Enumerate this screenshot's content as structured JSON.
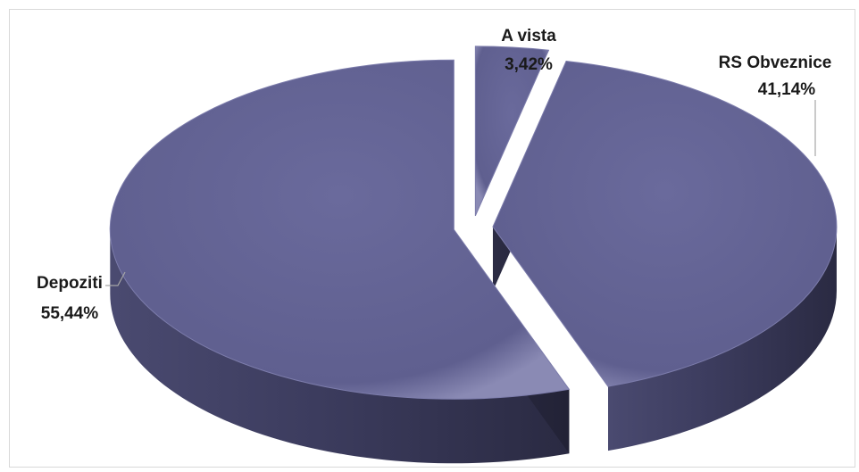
{
  "chart_data": {
    "type": "pie",
    "variant": "3d-exploded",
    "title": "",
    "slices": [
      {
        "name": "A vista",
        "value": 3.42,
        "label": "3,42%"
      },
      {
        "name": "RS Obveznice",
        "value": 41.14,
        "label": "41,14%"
      },
      {
        "name": "Depoziti",
        "value": 55.44,
        "label": "55,44%"
      }
    ],
    "colors": {
      "top": "#616191",
      "side": "#3c3c5c",
      "side_dark": "#2a2a40"
    },
    "legend": "none"
  }
}
